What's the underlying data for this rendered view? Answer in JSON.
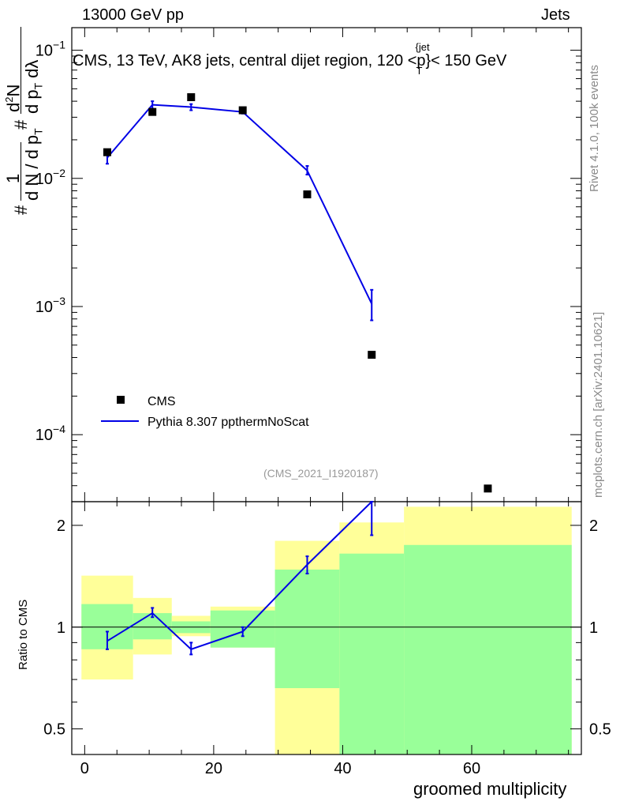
{
  "header": {
    "left": "13000 GeV pp",
    "right": "Jets",
    "title": "CMS, 13 TeV, AK8 jets, central dijet region, 120 <p",
    "title_sup": "{jet",
    "title_sub": "T",
    "title_end": "}< 150 GeV"
  },
  "side_labels": {
    "rivet": "Rivet 4.1.0,  100k events",
    "mcplots": "mcplots.cern.ch [arXiv:2401.10621]"
  },
  "analysis_id": "(CMS_2021_I1920187)",
  "ylabel_top": {
    "hash1": "#",
    "one": "1",
    "den1": "d N / d p",
    "den1_sub": "T",
    "hash2": "#",
    "num2": "d",
    "num2_sup": "2",
    "num2_end": "N",
    "den2": "d p",
    "den2_sub": "T",
    "den2_end": "dλ"
  },
  "colors": {
    "mc_line": "#0000e6",
    "band_green": "#99ff99",
    "band_yellow": "#ffff99",
    "data_marker": "#000000"
  },
  "chart_data": {
    "type": "line",
    "xlabel": "groomed multiplicity",
    "ylabel_ratio": "Ratio to CMS",
    "xlim": [
      -2,
      77
    ],
    "x_ticks": [
      "0",
      "20",
      "40",
      "60"
    ],
    "x_tick_values": [
      0,
      20,
      40,
      60
    ],
    "main": {
      "yscale": "log",
      "ylim": [
        3e-05,
        0.15
      ],
      "y_ticks": [
        {
          "value": 0.1,
          "base": "10",
          "exp": "−1"
        },
        {
          "value": 0.01,
          "base": "10",
          "exp": "−2"
        },
        {
          "value": 0.001,
          "base": "10",
          "exp": "−3"
        },
        {
          "value": 0.0001,
          "base": "10",
          "exp": "−4"
        }
      ],
      "legend": [
        "CMS",
        "Pythia 8.307 ppthermNoScat"
      ],
      "legend_position": "lower-left",
      "series": [
        {
          "name": "CMS",
          "kind": "markers",
          "x": [
            3.5,
            10.5,
            16.5,
            24.5,
            34.5,
            44.5,
            62.5
          ],
          "values": [
            0.016,
            0.033,
            0.043,
            0.034,
            0.0075,
            0.00042,
            3.8e-05
          ]
        },
        {
          "name": "Pythia 8.307 ppthermNoScat",
          "kind": "line",
          "x": [
            3.5,
            10.5,
            16.5,
            24.5,
            34.5,
            44.5
          ],
          "values": [
            0.0145,
            0.0375,
            0.036,
            0.033,
            0.0115,
            0.00105
          ],
          "err_low": [
            0.013,
            0.035,
            0.034,
            0.032,
            0.0107,
            0.00078
          ],
          "err_high": [
            0.0163,
            0.04,
            0.038,
            0.034,
            0.0125,
            0.00135
          ]
        }
      ]
    },
    "ratio": {
      "yscale": "log",
      "ylim": [
        0.42,
        2.35
      ],
      "y_ticks": [
        "0.5",
        "1",
        "2"
      ],
      "y_tick_values": [
        0.5,
        1,
        2
      ],
      "bands": [
        {
          "x0": -0.5,
          "x1": 7.5,
          "green": [
            0.86,
            1.17
          ],
          "yellow": [
            0.7,
            1.42
          ]
        },
        {
          "x0": 7.5,
          "x1": 13.5,
          "green": [
            0.92,
            1.1
          ],
          "yellow": [
            0.83,
            1.22
          ]
        },
        {
          "x0": 13.5,
          "x1": 19.5,
          "green": [
            0.96,
            1.04
          ],
          "yellow": [
            0.94,
            1.08
          ]
        },
        {
          "x0": 19.5,
          "x1": 29.5,
          "green": [
            0.87,
            1.12
          ],
          "yellow": [
            0.87,
            1.15
          ]
        },
        {
          "x0": 29.5,
          "x1": 39.5,
          "green": [
            0.66,
            1.48
          ],
          "yellow": [
            0.42,
            1.8
          ]
        },
        {
          "x0": 39.5,
          "x1": 49.5,
          "green": [
            0.42,
            1.65
          ],
          "yellow": [
            0.42,
            2.04
          ]
        },
        {
          "x0": 49.5,
          "x1": 75.5,
          "green": [
            0.42,
            1.75
          ],
          "yellow": [
            0.42,
            2.27
          ]
        }
      ],
      "series": [
        {
          "name": "Pythia 8.307 ppthermNoScat",
          "x": [
            3.5,
            10.5,
            16.5,
            24.5,
            34.5,
            44.5
          ],
          "values": [
            0.91,
            1.1,
            0.86,
            0.97,
            1.53,
            2.35
          ],
          "err_low": [
            0.86,
            1.07,
            0.83,
            0.94,
            1.44,
            1.87
          ],
          "err_high": [
            0.97,
            1.14,
            0.9,
            1.0,
            1.62,
            2.35
          ]
        }
      ]
    }
  }
}
